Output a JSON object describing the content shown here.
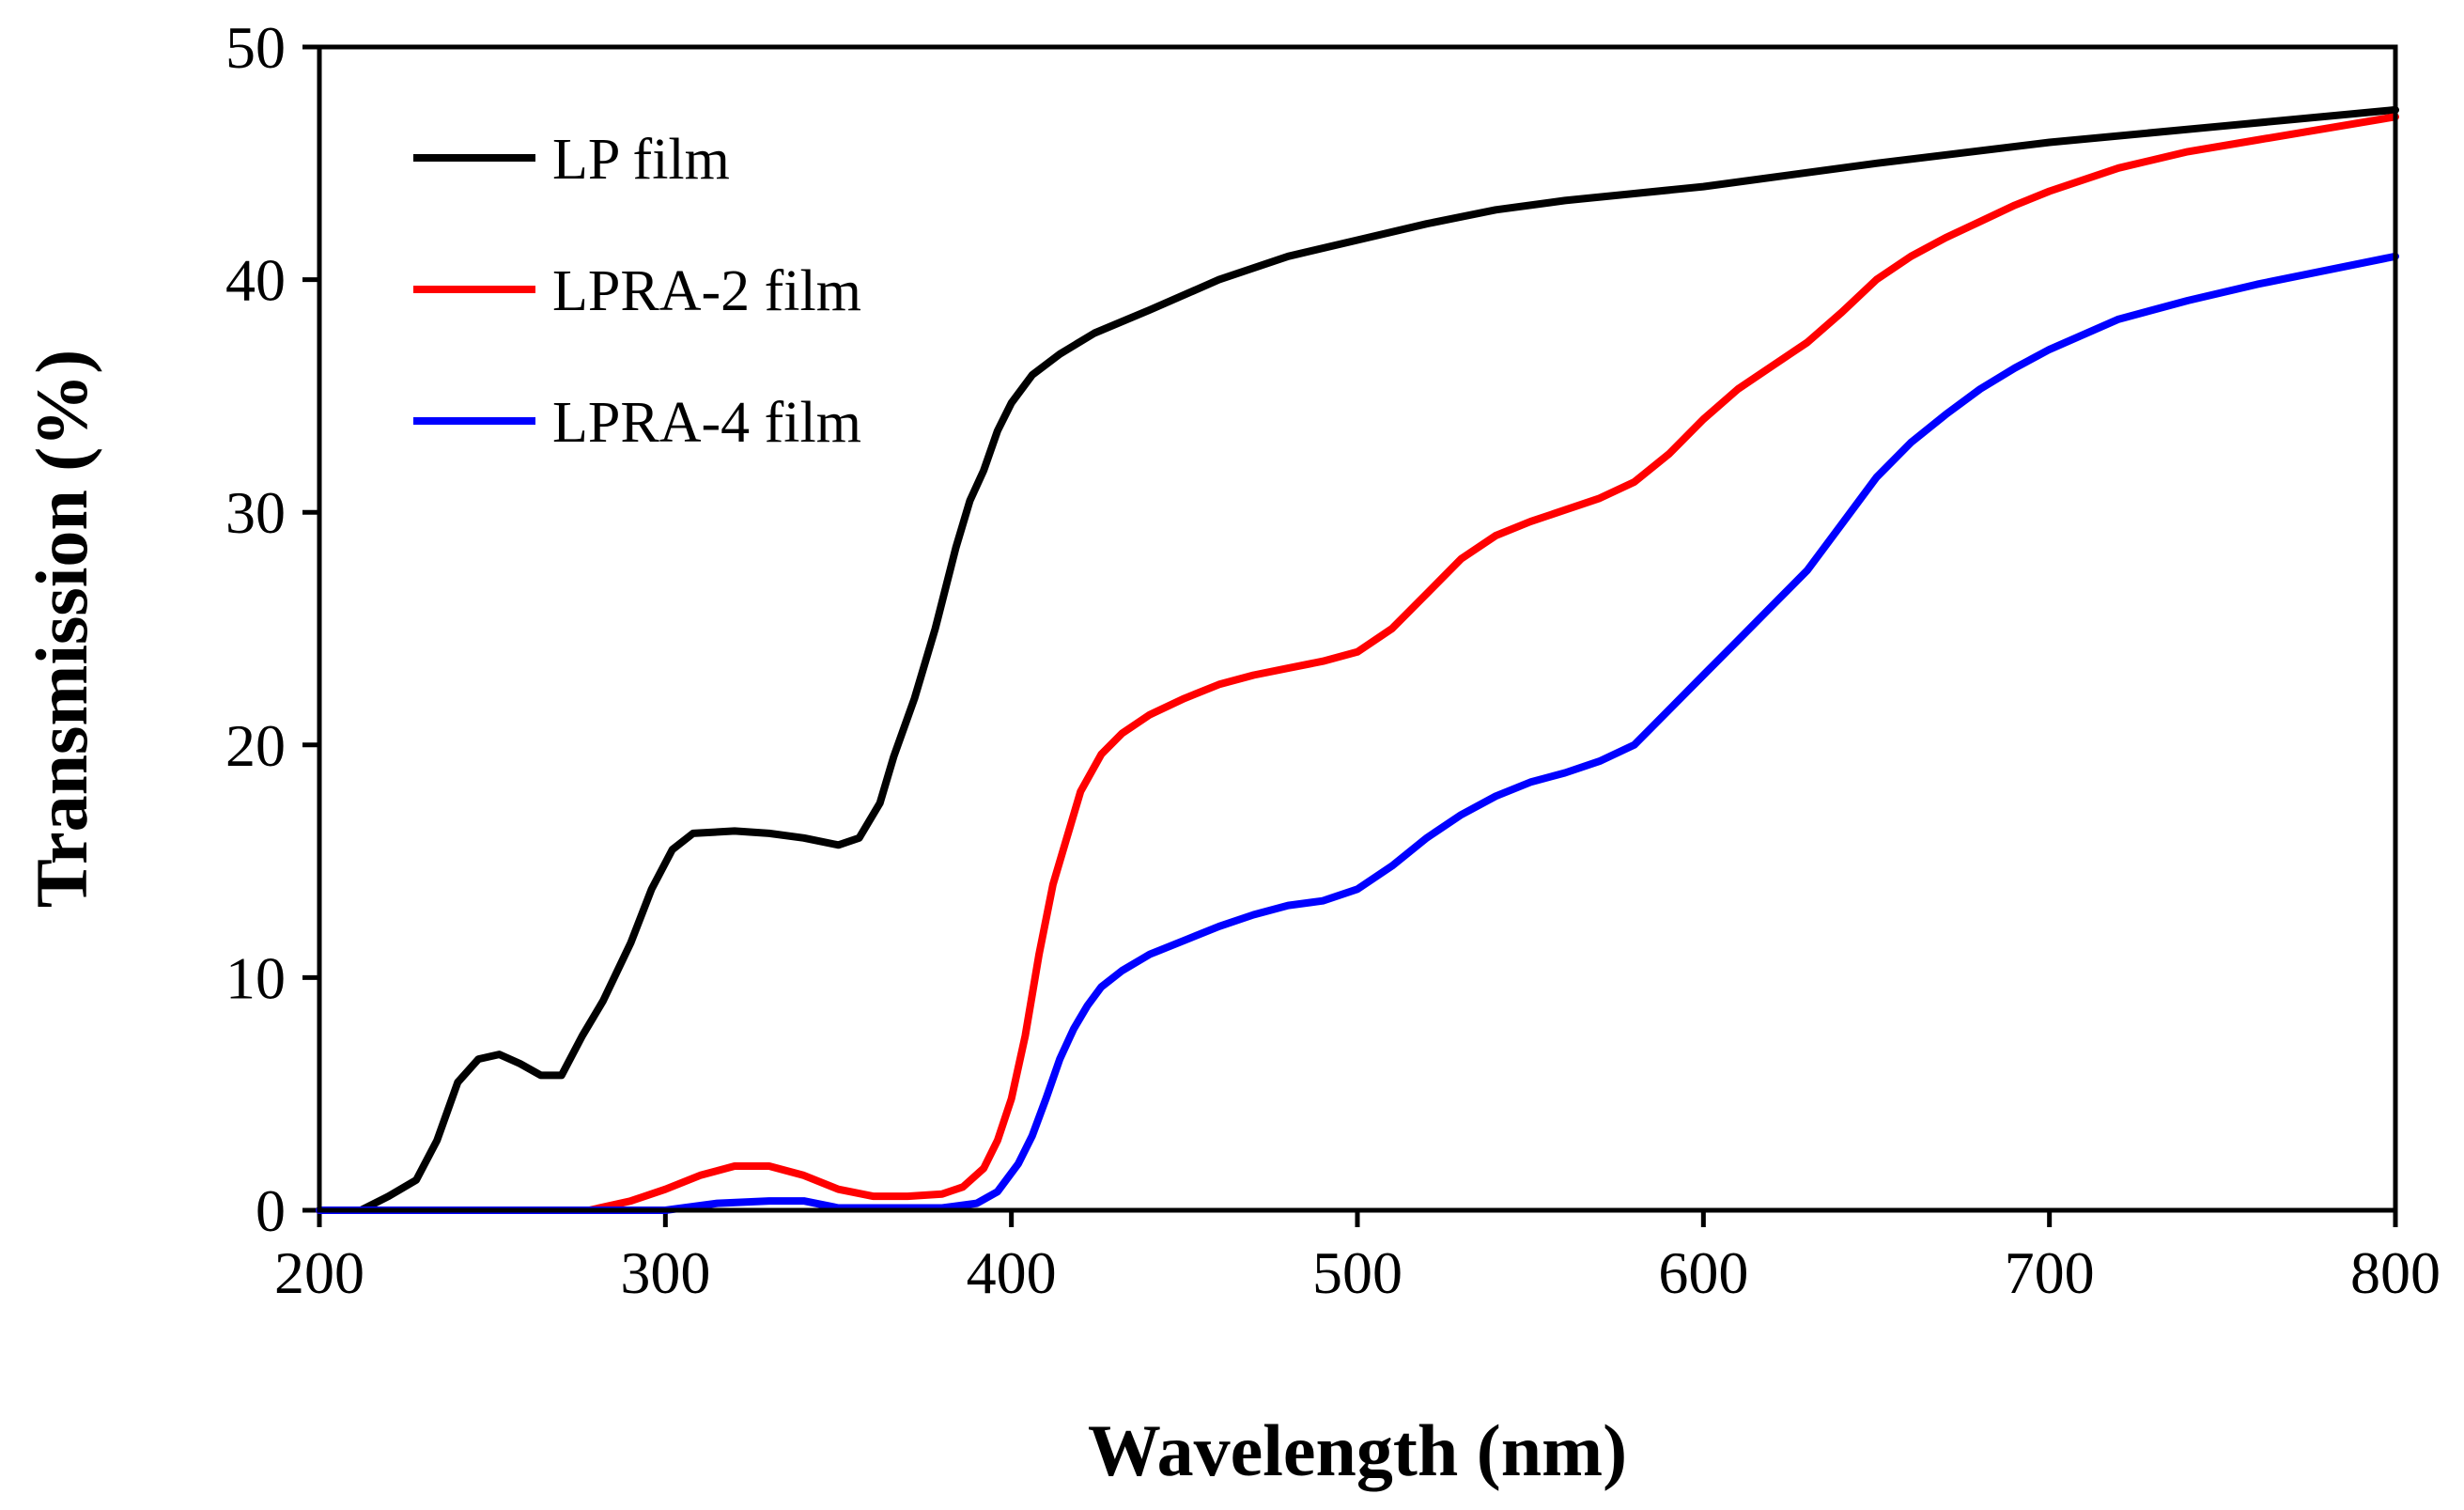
{
  "chart_data": {
    "type": "line",
    "title": "",
    "xlabel": "Wavelength (nm)",
    "ylabel": "Transmission (%)",
    "xlim": [
      200,
      800
    ],
    "ylim": [
      0,
      50
    ],
    "xticks": [
      200,
      300,
      400,
      500,
      600,
      700,
      800
    ],
    "yticks": [
      0,
      10,
      20,
      30,
      40,
      50
    ],
    "xtick_labels": [
      "200",
      "300",
      "400",
      "500",
      "600",
      "700",
      "800"
    ],
    "ytick_labels": [
      "0",
      "10",
      "20",
      "30",
      "40",
      "50"
    ],
    "grid": false,
    "legend_position": "top-left",
    "series": [
      {
        "name": "LP film",
        "color": "#000000",
        "x": [
          200,
          212,
          220,
          228,
          234,
          240,
          246,
          252,
          258,
          264,
          270,
          276,
          282,
          290,
          296,
          302,
          308,
          320,
          330,
          340,
          350,
          356,
          362,
          366,
          372,
          378,
          384,
          388,
          392,
          396,
          400,
          406,
          414,
          424,
          440,
          460,
          480,
          500,
          520,
          540,
          560,
          580,
          600,
          650,
          700,
          750,
          800
        ],
        "values": [
          0,
          0,
          0.6,
          1.3,
          3.0,
          5.5,
          6.5,
          6.7,
          6.3,
          5.8,
          5.8,
          7.5,
          9.0,
          11.5,
          13.8,
          15.5,
          16.2,
          16.3,
          16.2,
          16.0,
          15.7,
          16.0,
          17.5,
          19.5,
          22.0,
          25.0,
          28.5,
          30.5,
          31.8,
          33.5,
          34.7,
          35.9,
          36.8,
          37.7,
          38.7,
          40.0,
          41.0,
          41.7,
          42.4,
          43.0,
          43.4,
          43.7,
          44.0,
          45.0,
          45.9,
          46.6,
          47.3
        ]
      },
      {
        "name": "LPRA-2 film",
        "color": "#ff0000",
        "x": [
          200,
          278,
          290,
          300,
          310,
          320,
          330,
          340,
          350,
          360,
          370,
          380,
          386,
          392,
          396,
          400,
          404,
          408,
          412,
          416,
          420,
          426,
          432,
          440,
          450,
          460,
          470,
          480,
          490,
          500,
          510,
          520,
          530,
          540,
          550,
          560,
          570,
          580,
          590,
          600,
          610,
          620,
          630,
          640,
          650,
          660,
          670,
          680,
          690,
          700,
          720,
          740,
          760,
          780,
          800
        ],
        "values": [
          0,
          0,
          0.4,
          0.9,
          1.5,
          1.9,
          1.9,
          1.5,
          0.9,
          0.6,
          0.6,
          0.7,
          1.0,
          1.8,
          3.0,
          4.8,
          7.5,
          11.0,
          14.0,
          16.0,
          18.0,
          19.6,
          20.5,
          21.3,
          22.0,
          22.6,
          23.0,
          23.3,
          23.6,
          24.0,
          25.0,
          26.5,
          28.0,
          29.0,
          29.6,
          30.1,
          30.6,
          31.3,
          32.5,
          34.0,
          35.3,
          36.3,
          37.3,
          38.6,
          40.0,
          41.0,
          41.8,
          42.5,
          43.2,
          43.8,
          44.8,
          45.5,
          46.0,
          46.5,
          47.0
        ]
      },
      {
        "name": "LPRA-4 film",
        "color": "#0000ff",
        "x": [
          200,
          300,
          315,
          330,
          340,
          350,
          380,
          390,
          396,
          402,
          406,
          410,
          414,
          418,
          422,
          426,
          432,
          440,
          450,
          460,
          470,
          480,
          490,
          500,
          510,
          520,
          530,
          540,
          550,
          560,
          570,
          580,
          590,
          600,
          610,
          620,
          630,
          640,
          650,
          660,
          670,
          680,
          690,
          700,
          720,
          740,
          760,
          780,
          800
        ],
        "values": [
          0,
          0,
          0.3,
          0.4,
          0.4,
          0.1,
          0.1,
          0.3,
          0.8,
          2.0,
          3.2,
          4.8,
          6.5,
          7.8,
          8.8,
          9.6,
          10.3,
          11.0,
          11.6,
          12.2,
          12.7,
          13.1,
          13.3,
          13.8,
          14.8,
          16.0,
          17.0,
          17.8,
          18.4,
          18.8,
          19.3,
          20.0,
          21.5,
          23.0,
          24.5,
          26.0,
          27.5,
          29.5,
          31.5,
          33.0,
          34.2,
          35.3,
          36.2,
          37.0,
          38.3,
          39.1,
          39.8,
          40.4,
          41.0
        ]
      }
    ]
  }
}
